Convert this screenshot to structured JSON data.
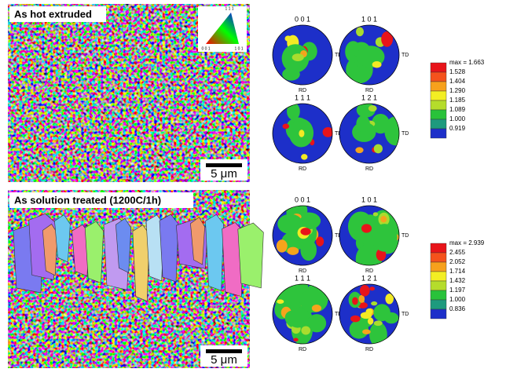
{
  "panels": [
    {
      "map_label": "As hot extruded",
      "scale_bar": "5 μm",
      "ipf_key": [
        "1 1 1",
        "0 0 1",
        "1 0 1"
      ],
      "pole_figures": [
        {
          "label": "0 0 1",
          "td": "TD",
          "rd": "RD"
        },
        {
          "label": "1 0 1",
          "td": "TD",
          "rd": "RD"
        },
        {
          "label": "1 1 1",
          "td": "TD",
          "rd": "RD"
        },
        {
          "label": "1 2 1",
          "td": "TD",
          "rd": "RD"
        }
      ],
      "legend": [
        "max = 1.663",
        "1.528",
        "1.404",
        "1.290",
        "1.185",
        "1.089",
        "1.000",
        "0.919"
      ]
    },
    {
      "map_label": "As solution treated (1200C/1h)",
      "scale_bar": "5 μm",
      "pole_figures": [
        {
          "label": "0 0 1",
          "td": "TD",
          "rd": "RD"
        },
        {
          "label": "1 0 1",
          "td": "TD",
          "rd": "RD"
        },
        {
          "label": "1 1 1",
          "td": "TD",
          "rd": "RD"
        },
        {
          "label": "1 2 1",
          "td": "TD",
          "rd": "RD"
        }
      ],
      "legend": [
        "max = 2.939",
        "2.455",
        "2.052",
        "1.714",
        "1.432",
        "1.197",
        "1.000",
        "0.836"
      ]
    }
  ]
}
